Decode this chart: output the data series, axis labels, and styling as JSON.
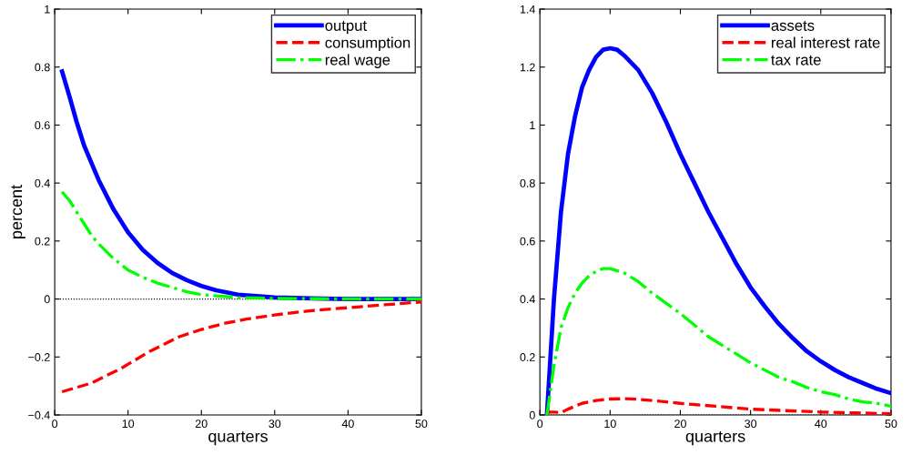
{
  "chart_data": [
    {
      "type": "line",
      "xlabel": "quarters",
      "ylabel": "percent",
      "xlim": [
        0,
        50
      ],
      "xticks": [
        0,
        10,
        20,
        30,
        40,
        50
      ],
      "ylim": [
        -0.4,
        1
      ],
      "yticks": [
        {
          "value": -0.4,
          "label": "−0.4"
        },
        {
          "value": -0.2,
          "label": "−0.2"
        },
        0,
        0.2,
        0.4,
        0.6,
        0.8,
        1
      ],
      "grid": false,
      "legend": "top right",
      "ref_lines": [
        {
          "axis": "y",
          "value": 0,
          "color": "#000000",
          "line_style": "dotted"
        }
      ],
      "series": [
        {
          "name": "output",
          "color": "#0000ff",
          "line_style": "solid",
          "x": [
            1,
            2,
            3,
            4,
            5,
            6,
            7,
            8,
            9,
            10,
            12,
            14,
            16,
            18,
            20,
            22,
            25,
            30,
            35,
            40,
            50
          ],
          "values": [
            0.785,
            0.7,
            0.61,
            0.53,
            0.47,
            0.41,
            0.36,
            0.31,
            0.27,
            0.23,
            0.17,
            0.125,
            0.09,
            0.065,
            0.045,
            0.03,
            0.015,
            0.005,
            0.002,
            0,
            0
          ]
        },
        {
          "name": "consumption",
          "color": "#ff0000",
          "line_style": "dashed",
          "x": [
            1,
            3,
            5,
            7,
            9,
            11,
            13,
            15,
            17,
            20,
            23,
            26,
            30,
            35,
            40,
            45,
            50
          ],
          "values": [
            -0.32,
            -0.305,
            -0.29,
            -0.265,
            -0.24,
            -0.21,
            -0.18,
            -0.155,
            -0.13,
            -0.105,
            -0.085,
            -0.07,
            -0.055,
            -0.04,
            -0.03,
            -0.02,
            -0.01
          ]
        },
        {
          "name": "real wage",
          "color": "#00ff00",
          "line_style": "dashdot",
          "x": [
            1,
            2,
            3,
            4,
            5,
            6,
            8,
            10,
            12,
            14,
            16,
            18,
            20,
            25,
            30,
            40,
            50
          ],
          "values": [
            0.37,
            0.34,
            0.3,
            0.26,
            0.22,
            0.19,
            0.14,
            0.1,
            0.075,
            0.055,
            0.04,
            0.025,
            0.015,
            0.005,
            0.002,
            0,
            0
          ]
        }
      ]
    },
    {
      "type": "line",
      "xlabel": "quarters",
      "xlim": [
        0,
        50
      ],
      "xticks": [
        0,
        10,
        20,
        30,
        40,
        50
      ],
      "ylim": [
        0,
        1.4
      ],
      "yticks": [
        0,
        0.2,
        0.4,
        0.6,
        0.8,
        1,
        1.2,
        1.4
      ],
      "grid": false,
      "legend": "top right",
      "ref_lines": [
        {
          "axis": "y",
          "value": 0,
          "color": "#000000",
          "line_style": "dotted"
        }
      ],
      "series": [
        {
          "name": "assets",
          "color": "#0000ff",
          "line_style": "solid",
          "x": [
            1,
            2,
            3,
            4,
            5,
            6,
            7,
            8,
            9,
            10,
            11,
            12,
            14,
            16,
            18,
            20,
            22,
            24,
            26,
            28,
            30,
            32,
            34,
            36,
            38,
            40,
            42,
            44,
            46,
            48,
            50
          ],
          "values": [
            0,
            0.4,
            0.7,
            0.9,
            1.03,
            1.13,
            1.19,
            1.235,
            1.26,
            1.265,
            1.26,
            1.24,
            1.19,
            1.11,
            1.01,
            0.9,
            0.8,
            0.7,
            0.61,
            0.52,
            0.44,
            0.375,
            0.315,
            0.265,
            0.22,
            0.185,
            0.155,
            0.13,
            0.11,
            0.09,
            0.075
          ]
        },
        {
          "name": "real interest rate",
          "color": "#ff0000",
          "line_style": "dashed",
          "x": [
            1,
            2,
            3,
            4,
            5,
            6,
            8,
            10,
            12,
            14,
            16,
            18,
            20,
            25,
            30,
            35,
            40,
            45,
            50
          ],
          "values": [
            0.01,
            0.01,
            0.008,
            0.02,
            0.03,
            0.04,
            0.05,
            0.055,
            0.056,
            0.054,
            0.05,
            0.045,
            0.04,
            0.03,
            0.02,
            0.015,
            0.01,
            0.007,
            0.004
          ]
        },
        {
          "name": "tax rate",
          "color": "#00ff00",
          "line_style": "dashdot",
          "x": [
            1,
            2,
            3,
            4,
            5,
            6,
            7,
            8,
            9,
            10,
            12,
            14,
            16,
            18,
            20,
            22,
            24,
            26,
            28,
            30,
            32,
            34,
            36,
            38,
            40,
            42,
            44,
            46,
            48,
            50
          ],
          "values": [
            0,
            0.17,
            0.3,
            0.37,
            0.42,
            0.455,
            0.48,
            0.495,
            0.505,
            0.505,
            0.49,
            0.46,
            0.42,
            0.385,
            0.35,
            0.31,
            0.27,
            0.24,
            0.21,
            0.18,
            0.155,
            0.13,
            0.115,
            0.095,
            0.08,
            0.07,
            0.055,
            0.045,
            0.04,
            0.03
          ]
        }
      ]
    }
  ]
}
